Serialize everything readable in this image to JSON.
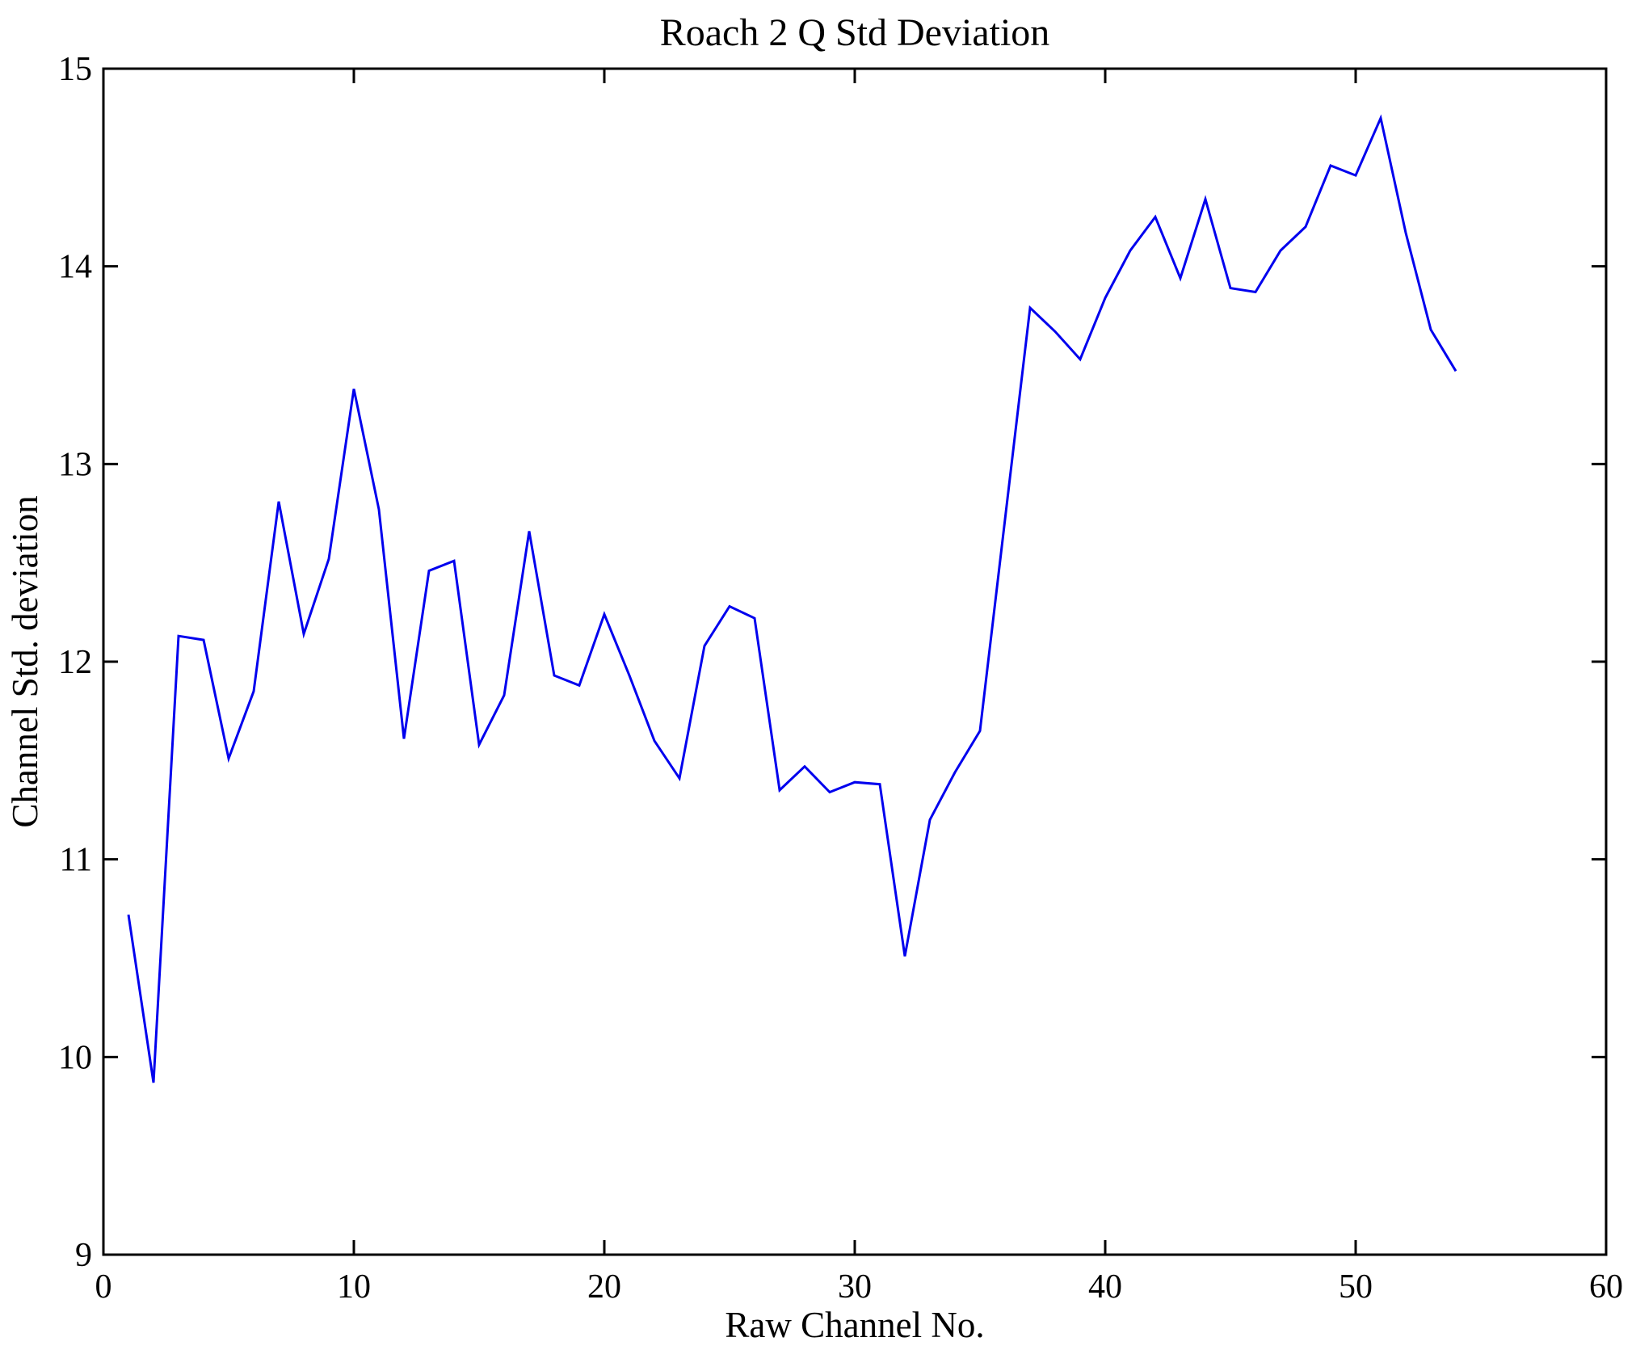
{
  "figure": {
    "background": "#ffffff",
    "axis_color": "#000000",
    "tick_direction": "in"
  },
  "chart_data": {
    "type": "line",
    "title": "Roach 2 Q Std Deviation",
    "xlabel": "Raw Channel No.",
    "ylabel": "Channel Std. deviation",
    "xlim": [
      0,
      60
    ],
    "ylim": [
      9,
      15
    ],
    "x_ticks": [
      0,
      10,
      20,
      30,
      40,
      50,
      60
    ],
    "x_tick_labels": [
      "0",
      "10",
      "20",
      "30",
      "40",
      "50",
      "60"
    ],
    "y_ticks": [
      9,
      10,
      11,
      12,
      13,
      14,
      15
    ],
    "y_tick_labels": [
      "9",
      "10",
      "11",
      "12",
      "13",
      "14",
      "15"
    ],
    "grid": false,
    "box": true,
    "legend": "none",
    "line_color": "#0000ee",
    "series": [
      {
        "name": "Channel Std deviation",
        "x": [
          1,
          2,
          3,
          4,
          5,
          6,
          7,
          8,
          9,
          10,
          11,
          12,
          13,
          14,
          15,
          16,
          17,
          18,
          19,
          20,
          21,
          22,
          23,
          24,
          25,
          26,
          27,
          28,
          29,
          30,
          31,
          32,
          33,
          34,
          35,
          36,
          37,
          38,
          39,
          40,
          41,
          42,
          43,
          44,
          45,
          46,
          47,
          48,
          49,
          50,
          51,
          52,
          53,
          54
        ],
        "values": [
          10.72,
          9.87,
          12.13,
          12.11,
          11.51,
          11.85,
          12.81,
          12.14,
          12.52,
          13.38,
          12.77,
          11.61,
          12.46,
          12.51,
          11.58,
          11.83,
          12.66,
          11.93,
          11.88,
          12.24,
          11.93,
          11.6,
          11.41,
          12.08,
          12.28,
          12.22,
          11.35,
          11.47,
          11.34,
          11.39,
          11.38,
          10.51,
          11.2,
          11.44,
          11.65,
          12.72,
          13.79,
          13.67,
          13.53,
          13.84,
          14.08,
          14.25,
          13.94,
          14.34,
          13.89,
          13.87,
          14.08,
          14.2,
          14.51,
          14.46,
          14.75,
          14.17,
          13.68,
          13.47
        ]
      }
    ]
  }
}
